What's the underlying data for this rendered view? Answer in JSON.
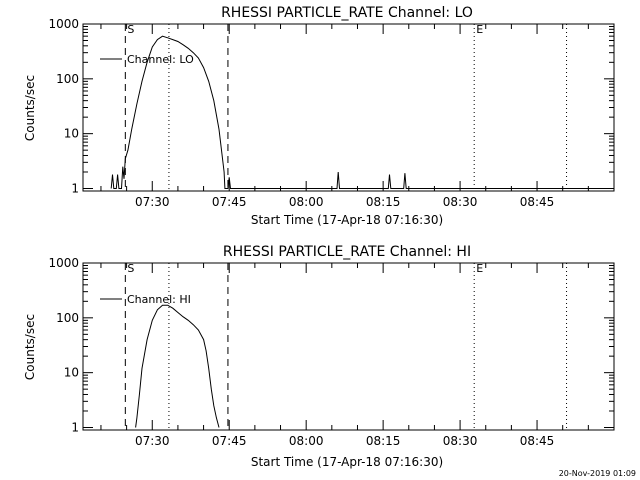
{
  "timestamp": "20-Nov-2019 01:09",
  "chart_data": [
    {
      "type": "line",
      "title": "RHESSI PARTICLE_RATE Channel: LO",
      "xlabel": "Start Time (17-Apr-18 07:16:30)",
      "ylabel": "Counts/sec",
      "y_scale": "log",
      "ylim": [
        0.9,
        1000
      ],
      "xlim": [
        "07:16:30",
        "09:00:00"
      ],
      "x_ticks": [
        "07:30",
        "07:45",
        "08:00",
        "08:15",
        "08:30",
        "08:45"
      ],
      "y_ticks": [
        "1",
        "10",
        "100",
        "1000"
      ],
      "legend": {
        "label": "Channel: LO",
        "placement": "top-left"
      },
      "markers": [
        {
          "label": "S",
          "time": "07:24:45",
          "style": "dashed"
        },
        {
          "label": "",
          "time": "07:33:15",
          "style": "dotted"
        },
        {
          "label": "",
          "time": "07:44:45",
          "style": "dashed"
        },
        {
          "label": "E",
          "time": "08:32:45",
          "style": "dotted"
        },
        {
          "label": "",
          "time": "08:50:45",
          "style": "dotted"
        }
      ],
      "series": [
        {
          "name": "Channel: LO",
          "x": [
            "07:22:00",
            "07:22:15",
            "07:22:30",
            "07:23:00",
            "07:23:15",
            "07:23:30",
            "07:24:00",
            "07:24:15",
            "07:24:30",
            "07:24:45",
            "07:25:15",
            "07:26:00",
            "07:27:00",
            "07:28:00",
            "07:29:00",
            "07:30:00",
            "07:31:00",
            "07:32:00",
            "07:33:00",
            "07:34:00",
            "07:35:00",
            "07:36:00",
            "07:37:00",
            "07:38:00",
            "07:39:00",
            "07:40:00",
            "07:41:00",
            "07:42:00",
            "07:43:00",
            "07:43:30",
            "07:44:00",
            "07:44:10",
            "07:44:20",
            "07:44:30",
            "07:44:45",
            "07:45:00",
            "07:45:15",
            "07:45:30",
            "07:46:00",
            "07:50:00",
            "07:55:00",
            "08:00:00",
            "08:05:00",
            "08:06:00",
            "08:06:15",
            "08:06:30",
            "08:08:00",
            "08:12:00",
            "08:16:00",
            "08:16:15",
            "08:16:30",
            "08:18:00",
            "08:19:00",
            "08:19:15",
            "08:19:30",
            "08:25:00",
            "08:35:00",
            "08:45:00",
            "08:55:00",
            "09:00:00"
          ],
          "values": [
            1,
            1.8,
            1,
            1,
            1.8,
            1,
            1,
            2.5,
            1.5,
            3.5,
            5,
            12,
            35,
            90,
            200,
            380,
            520,
            600,
            560,
            520,
            480,
            420,
            360,
            300,
            240,
            160,
            90,
            40,
            12,
            5,
            2,
            1,
            1,
            1,
            1,
            1.6,
            1,
            1,
            1,
            1,
            1,
            1,
            1,
            1,
            2,
            1,
            1,
            1,
            1,
            1.8,
            1,
            1,
            1,
            1.9,
            1,
            1,
            1,
            1,
            1,
            1
          ]
        }
      ]
    },
    {
      "type": "line",
      "title": "RHESSI PARTICLE_RATE Channel: HI",
      "xlabel": "Start Time (17-Apr-18 07:16:30)",
      "ylabel": "Counts/sec",
      "y_scale": "log",
      "ylim": [
        0.9,
        1000
      ],
      "xlim": [
        "07:16:30",
        "09:00:00"
      ],
      "x_ticks": [
        "07:30",
        "07:45",
        "08:00",
        "08:15",
        "08:30",
        "08:45"
      ],
      "y_ticks": [
        "1",
        "10",
        "100",
        "1000"
      ],
      "legend": {
        "label": "Channel: HI",
        "placement": "top-left"
      },
      "markers": [
        {
          "label": "S",
          "time": "07:24:45",
          "style": "dashed"
        },
        {
          "label": "",
          "time": "07:33:15",
          "style": "dotted"
        },
        {
          "label": "",
          "time": "07:44:45",
          "style": "dashed"
        },
        {
          "label": "E",
          "time": "08:32:45",
          "style": "dotted"
        },
        {
          "label": "",
          "time": "08:50:45",
          "style": "dotted"
        }
      ],
      "series": [
        {
          "name": "Channel: HI",
          "x": [
            "07:26:45",
            "07:27:00",
            "07:27:30",
            "07:28:00",
            "07:29:00",
            "07:30:00",
            "07:31:00",
            "07:32:00",
            "07:33:00",
            "07:34:00",
            "07:35:00",
            "07:36:00",
            "07:37:00",
            "07:38:00",
            "07:39:00",
            "07:40:00",
            "07:40:30",
            "07:41:00",
            "07:41:30",
            "07:42:00",
            "07:42:30",
            "07:43:00"
          ],
          "values": [
            1,
            1.5,
            4,
            12,
            40,
            90,
            140,
            170,
            170,
            150,
            125,
            105,
            90,
            75,
            60,
            40,
            25,
            12,
            5,
            2.5,
            1.5,
            1
          ]
        }
      ]
    }
  ]
}
